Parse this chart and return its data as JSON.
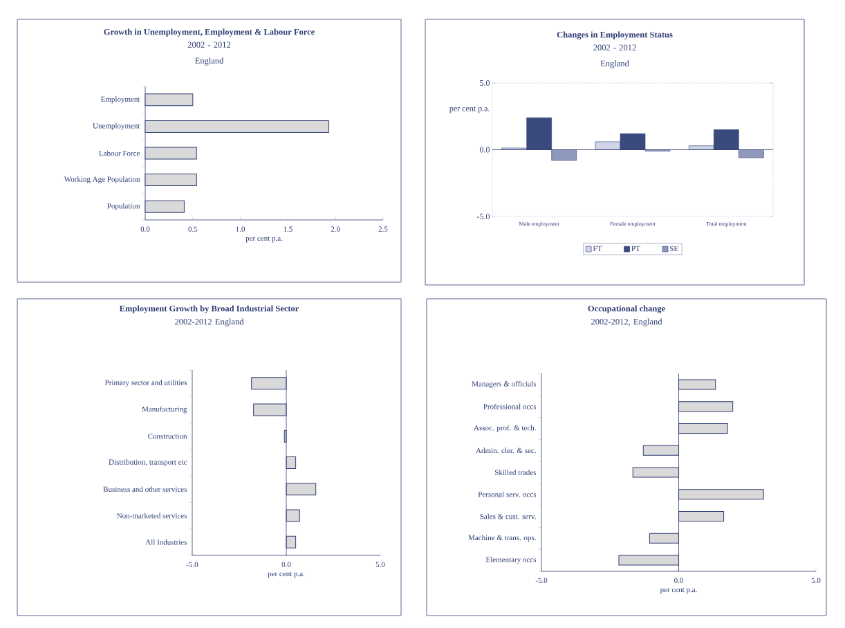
{
  "chart_data": [
    {
      "type": "bar",
      "orientation": "horizontal",
      "title": "Growth in Unemployment, Employment & Labour Force",
      "subtitle": "2002 - 2012 England",
      "xlabel": "per cent p.a.",
      "categories": [
        "Employment",
        "Unemployment",
        "Labour Force",
        "Working Age Population",
        "Population"
      ],
      "values": [
        0.5,
        1.93,
        0.54,
        0.54,
        0.41
      ],
      "color": "#d9d9d9",
      "xlim": [
        0,
        2.5
      ],
      "xticks": [
        {
          "value": 0,
          "label": "0.0"
        },
        {
          "value": 0.5,
          "label": "0.5"
        },
        {
          "value": 1,
          "label": "1.0"
        },
        {
          "value": 1.5,
          "label": "1.5"
        },
        {
          "value": 2,
          "label": "2.0"
        },
        {
          "value": 2.5,
          "label": "2.5"
        }
      ]
    },
    {
      "type": "bar",
      "title": "Changes in Employment Status",
      "subtitle": "2002 - 2012 England",
      "ylabel": "per cent p.a.",
      "categories": [
        "Male employment",
        "Female employment",
        "Total employment"
      ],
      "series": [
        {
          "name": "FT",
          "color": "#d0d5e6",
          "values": [
            0.13,
            0.6,
            0.3
          ]
        },
        {
          "name": "PT",
          "color": "#3b4a7d",
          "values": [
            2.4,
            1.2,
            1.5
          ]
        },
        {
          "name": "SE",
          "color": "#8f99bd",
          "values": [
            -0.8,
            -0.1,
            -0.6
          ]
        }
      ],
      "ylim": [
        -5,
        5
      ],
      "yticks": [
        {
          "value": -5,
          "label": "-5.0"
        },
        {
          "value": 0,
          "label": "0.0"
        },
        {
          "value": 5,
          "label": "5.0"
        }
      ],
      "legend": "bottom",
      "ref_lines": [
        {
          "axis": "y",
          "value": 0
        }
      ]
    },
    {
      "type": "bar",
      "orientation": "horizontal",
      "title": "Employment Growth by Broad Industrial Sector",
      "subtitle": "2002-2012 England",
      "xlabel": "per cent p.a.",
      "categories": [
        "Primary sector and utilities",
        "Manufacturing",
        "Construction",
        "Distribution, transport etc",
        "Business and other services",
        "Non-marketed services",
        "All Industries"
      ],
      "values": [
        -1.85,
        -1.74,
        -0.1,
        0.5,
        1.57,
        0.71,
        0.5
      ],
      "color": "#d9d9d9",
      "ref_lines": [
        {
          "axis": "x",
          "value": 0
        }
      ],
      "xlim": [
        -5,
        5
      ],
      "xticks": [
        {
          "value": -5,
          "label": "-5.0"
        },
        {
          "value": 0,
          "label": "0.0"
        },
        {
          "value": 5,
          "label": "5.0"
        }
      ]
    },
    {
      "type": "bar",
      "orientation": "horizontal",
      "title": "Occupational change",
      "subtitle": "2002-2012, England",
      "xlabel": "per cent p.a.",
      "categories": [
        "Managers & officials",
        "Professional occs",
        "Assoc. prof. & tech.",
        "Admin. cler. & sec.",
        "Skilled trades",
        "Personal serv. occs",
        "Sales & cust. serv.",
        "Machine & trans. ops.",
        "Elementary occs"
      ],
      "values": [
        1.34,
        1.97,
        1.78,
        -1.29,
        -1.67,
        3.09,
        1.64,
        -1.06,
        -2.18
      ],
      "color": "#d9d9d9",
      "ref_lines": [
        {
          "axis": "x",
          "value": 0
        }
      ],
      "xlim": [
        -5,
        5
      ],
      "xticks": [
        {
          "value": -5,
          "label": "-5.0"
        },
        {
          "value": 0,
          "label": "0.0"
        },
        {
          "value": 5,
          "label": "5.0"
        }
      ]
    }
  ]
}
